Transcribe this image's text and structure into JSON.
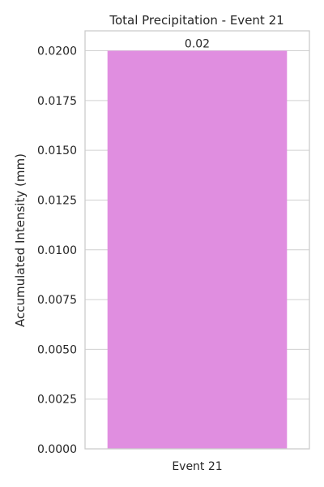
{
  "chart_data": {
    "type": "bar",
    "title": "Total Precipitation - Event 21",
    "xlabel": "",
    "ylabel": "Accumulated Intensity (mm)",
    "categories": [
      "Event 21"
    ],
    "values": [
      0.02
    ],
    "data_labels": [
      "0.02"
    ],
    "ylim": [
      0,
      0.021
    ],
    "yticks": [
      0,
      0.0025,
      0.005,
      0.0075,
      0.01,
      0.0125,
      0.015,
      0.0175,
      0.02
    ],
    "ytick_labels": [
      "0.0000",
      "0.0025",
      "0.0050",
      "0.0075",
      "0.0100",
      "0.0125",
      "0.0150",
      "0.0175",
      "0.0200"
    ],
    "grid": "horizontal",
    "bar_color": "#e08ee0",
    "grid_color": "#d0d0d0",
    "frame_color": "#cccccc"
  }
}
